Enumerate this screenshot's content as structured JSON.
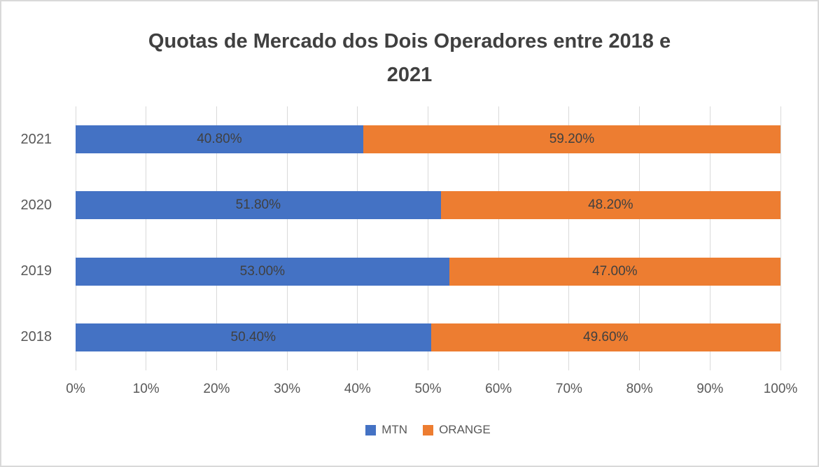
{
  "chart_data": {
    "type": "bar",
    "orientation": "horizontal",
    "stacked": true,
    "title": "Quotas de Mercado dos Dois Operadores entre 2018 e 2021",
    "title_lines": [
      "Quotas de Mercado dos Dois Operadores entre 2018 e",
      "2021"
    ],
    "categories": [
      "2021",
      "2020",
      "2019",
      "2018"
    ],
    "series": [
      {
        "name": "MTN",
        "color": "#4472C4",
        "values": [
          40.8,
          51.8,
          53.0,
          50.4
        ],
        "labels": [
          "40.80%",
          "51.80%",
          "53.00%",
          "50.40%"
        ]
      },
      {
        "name": "ORANGE",
        "color": "#ED7D31",
        "values": [
          59.2,
          48.2,
          47.0,
          49.6
        ],
        "labels": [
          "59.20%",
          "48.20%",
          "47.00%",
          "49.60%"
        ]
      }
    ],
    "xlabel": "",
    "ylabel": "",
    "x_axis": {
      "min": 0,
      "max": 100,
      "tick_labels": [
        "0%",
        "10%",
        "20%",
        "30%",
        "40%",
        "50%",
        "60%",
        "70%",
        "80%",
        "90%",
        "100%"
      ]
    },
    "grid": true,
    "legend_position": "bottom",
    "colors": {
      "title_text": "#404040",
      "axis_text": "#595959",
      "data_label_text": "#404040",
      "gridline": "#D9D9D9",
      "frame_border": "#D9D9D9",
      "background": "#FFFFFF"
    }
  }
}
